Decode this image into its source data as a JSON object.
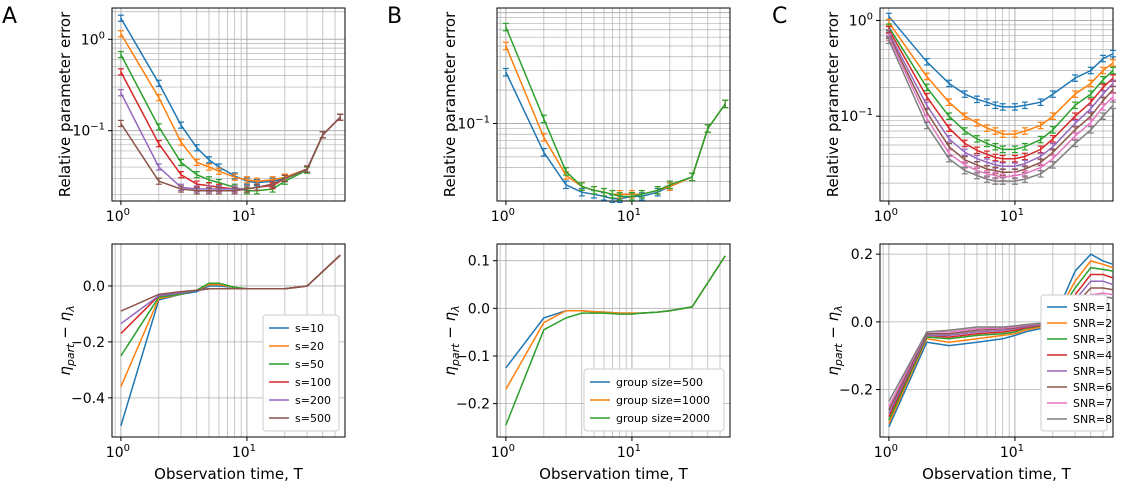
{
  "figure": {
    "panel_letters": [
      "A",
      "B",
      "C"
    ],
    "xlabel": "Observation time, T",
    "ylabel_top": "Relative parameter error",
    "ylabel_bottom": "η_part − η_λ"
  },
  "chart_data": [
    {
      "id": "A-top",
      "panel": "A",
      "type": "line",
      "xscale": "log",
      "yscale": "log",
      "xlim": [
        0.85,
        60
      ],
      "ylim": [
        0.017,
        2.2
      ],
      "grid": true,
      "xticks": [
        {
          "v": 1,
          "label": "10^0"
        },
        {
          "v": 10,
          "label": "10^1"
        }
      ],
      "yticks": [
        {
          "v": 0.1,
          "label": "10^-1"
        },
        {
          "v": 1,
          "label": "10^0"
        }
      ],
      "ylabel": "Relative parameter error",
      "error_bars": true,
      "x": [
        1,
        2,
        3,
        4,
        5,
        6,
        8,
        10,
        12,
        16,
        20,
        30,
        40,
        55
      ],
      "series": [
        {
          "name": "s=10",
          "color": "#1f77b4",
          "values": [
            1.7,
            0.33,
            0.115,
            0.065,
            0.048,
            0.04,
            0.032,
            0.028,
            0.027,
            0.028,
            0.03,
            0.038,
            0.09,
            0.14
          ]
        },
        {
          "name": "s=20",
          "color": "#ff7f0e",
          "values": [
            1.15,
            0.23,
            0.075,
            0.045,
            0.04,
            0.036,
            0.031,
            0.029,
            0.028,
            0.029,
            0.031,
            0.038,
            0.09,
            0.14
          ]
        },
        {
          "name": "s=50",
          "color": "#2ca02c",
          "values": [
            0.68,
            0.11,
            0.045,
            0.033,
            0.029,
            0.027,
            0.024,
            0.022,
            0.022,
            0.023,
            0.028,
            0.037,
            0.09,
            0.14
          ]
        },
        {
          "name": "s=100",
          "color": "#d62728",
          "values": [
            0.44,
            0.072,
            0.033,
            0.026,
            0.025,
            0.024,
            0.023,
            0.023,
            0.024,
            0.025,
            0.03,
            0.038,
            0.09,
            0.14
          ]
        },
        {
          "name": "s=200",
          "color": "#9467bd",
          "values": [
            0.26,
            0.04,
            0.024,
            0.023,
            0.023,
            0.023,
            0.023,
            0.023,
            0.024,
            0.026,
            0.03,
            0.038,
            0.09,
            0.14
          ]
        },
        {
          "name": "s=500",
          "color": "#8c564b",
          "values": [
            0.12,
            0.028,
            0.023,
            0.022,
            0.022,
            0.022,
            0.022,
            0.023,
            0.024,
            0.026,
            0.03,
            0.038,
            0.09,
            0.14
          ]
        }
      ]
    },
    {
      "id": "A-bottom",
      "panel": "A",
      "type": "line",
      "xscale": "log",
      "yscale": "linear",
      "xlim": [
        0.85,
        60
      ],
      "ylim": [
        -0.54,
        0.15
      ],
      "grid": true,
      "xticks": [
        {
          "v": 1,
          "label": "10^0"
        },
        {
          "v": 10,
          "label": "10^1"
        }
      ],
      "yticks": [
        {
          "v": -0.4,
          "label": "−0.4"
        },
        {
          "v": -0.2,
          "label": "−0.2"
        },
        {
          "v": 0,
          "label": "0.0"
        }
      ],
      "ylabel": "η_part − η_λ",
      "xlabel": "Observation time, T",
      "legend": "bottom-right",
      "x": [
        1,
        2,
        3,
        4,
        5,
        6,
        8,
        10,
        12,
        16,
        20,
        30,
        55
      ],
      "series": [
        {
          "name": "s=10",
          "color": "#1f77b4",
          "values": [
            -0.5,
            -0.05,
            -0.03,
            -0.02,
            0,
            0,
            -0.005,
            -0.01,
            -0.01,
            -0.01,
            -0.01,
            0,
            0.11
          ]
        },
        {
          "name": "s=20",
          "color": "#ff7f0e",
          "values": [
            -0.36,
            -0.045,
            -0.03,
            -0.015,
            0.005,
            0.005,
            -0.005,
            -0.01,
            -0.01,
            -0.01,
            -0.01,
            0,
            0.11
          ]
        },
        {
          "name": "s=50",
          "color": "#2ca02c",
          "values": [
            -0.25,
            -0.04,
            -0.03,
            -0.015,
            0.01,
            0.01,
            -0.005,
            -0.01,
            -0.01,
            -0.01,
            -0.01,
            0,
            0.11
          ]
        },
        {
          "name": "s=100",
          "color": "#d62728",
          "values": [
            -0.17,
            -0.035,
            -0.025,
            -0.015,
            -0.01,
            -0.01,
            -0.01,
            -0.01,
            -0.01,
            -0.01,
            -0.01,
            0,
            0.11
          ]
        },
        {
          "name": "s=200",
          "color": "#9467bd",
          "values": [
            -0.135,
            -0.035,
            -0.025,
            -0.015,
            -0.01,
            -0.01,
            -0.01,
            -0.01,
            -0.01,
            -0.01,
            -0.01,
            0,
            0.11
          ]
        },
        {
          "name": "s=500",
          "color": "#8c564b",
          "values": [
            -0.09,
            -0.03,
            -0.02,
            -0.015,
            -0.01,
            -0.01,
            -0.01,
            -0.01,
            -0.01,
            -0.01,
            -0.01,
            0,
            0.11
          ]
        }
      ]
    },
    {
      "id": "B-top",
      "panel": "B",
      "type": "line",
      "xscale": "log",
      "yscale": "log",
      "xlim": [
        0.85,
        60
      ],
      "ylim": [
        0.02,
        1.1
      ],
      "grid": true,
      "xticks": [
        {
          "v": 1,
          "label": "10^0"
        },
        {
          "v": 10,
          "label": "10^1"
        }
      ],
      "yticks": [
        {
          "v": 0.1,
          "label": "10^-1"
        }
      ],
      "ylabel": "Relative parameter error",
      "error_bars": true,
      "x": [
        1,
        2,
        3,
        4,
        5,
        6,
        7,
        8,
        10,
        12,
        16,
        20,
        30,
        40,
        55
      ],
      "series": [
        {
          "name": "group size=500",
          "color": "#1f77b4",
          "values": [
            0.29,
            0.055,
            0.028,
            0.024,
            0.023,
            0.022,
            0.021,
            0.021,
            0.022,
            0.022,
            0.024,
            0.027,
            0.033,
            0.09,
            0.15
          ]
        },
        {
          "name": "group size=1000",
          "color": "#ff7f0e",
          "values": [
            0.5,
            0.075,
            0.034,
            0.027,
            0.025,
            0.024,
            0.023,
            0.023,
            0.023,
            0.023,
            0.025,
            0.027,
            0.033,
            0.09,
            0.15
          ]
        },
        {
          "name": "group size=2000",
          "color": "#2ca02c",
          "values": [
            0.74,
            0.11,
            0.037,
            0.027,
            0.025,
            0.024,
            0.023,
            0.022,
            0.022,
            0.023,
            0.025,
            0.028,
            0.033,
            0.09,
            0.15
          ]
        }
      ]
    },
    {
      "id": "B-bottom",
      "panel": "B",
      "type": "line",
      "xscale": "log",
      "yscale": "linear",
      "xlim": [
        0.85,
        60
      ],
      "ylim": [
        -0.27,
        0.135
      ],
      "grid": true,
      "xticks": [
        {
          "v": 1,
          "label": "10^0"
        },
        {
          "v": 10,
          "label": "10^1"
        }
      ],
      "yticks": [
        {
          "v": -0.2,
          "label": "−0.2"
        },
        {
          "v": -0.1,
          "label": "−0.1"
        },
        {
          "v": 0,
          "label": "0.0"
        },
        {
          "v": 0.1,
          "label": "0.1"
        }
      ],
      "ylabel": "η_part − η_λ",
      "xlabel": "Observation time, T",
      "legend": "bottom-right",
      "x": [
        1,
        2,
        3,
        4,
        5,
        6,
        8,
        10,
        12,
        16,
        20,
        30,
        55
      ],
      "series": [
        {
          "name": "group size=500",
          "color": "#1f77b4",
          "values": [
            -0.125,
            -0.02,
            -0.005,
            -0.005,
            -0.007,
            -0.008,
            -0.01,
            -0.01,
            -0.01,
            -0.008,
            -0.005,
            0.003,
            0.11
          ]
        },
        {
          "name": "group size=1000",
          "color": "#ff7f0e",
          "values": [
            -0.17,
            -0.03,
            -0.005,
            -0.005,
            -0.007,
            -0.008,
            -0.01,
            -0.01,
            -0.01,
            -0.008,
            -0.005,
            0.003,
            0.11
          ]
        },
        {
          "name": "group size=2000",
          "color": "#2ca02c",
          "values": [
            -0.245,
            -0.045,
            -0.02,
            -0.01,
            -0.01,
            -0.01,
            -0.012,
            -0.012,
            -0.01,
            -0.008,
            -0.005,
            0.003,
            0.11
          ]
        }
      ]
    },
    {
      "id": "C-top",
      "panel": "C",
      "type": "line",
      "xscale": "log",
      "yscale": "log",
      "xlim": [
        0.85,
        60
      ],
      "ylim": [
        0.013,
        1.35
      ],
      "grid": true,
      "xticks": [
        {
          "v": 1,
          "label": "10^0"
        },
        {
          "v": 10,
          "label": "10^1"
        }
      ],
      "yticks": [
        {
          "v": 0.1,
          "label": "10^-1"
        },
        {
          "v": 1,
          "label": "10^0"
        }
      ],
      "ylabel": "Relative parameter error",
      "error_bars": true,
      "x": [
        1,
        2,
        3,
        4,
        5,
        6,
        7,
        8,
        10,
        12,
        16,
        20,
        30,
        40,
        50,
        60
      ],
      "series": [
        {
          "name": "SNR=1",
          "color": "#1f77b4",
          "values": [
            1.1,
            0.37,
            0.22,
            0.17,
            0.15,
            0.14,
            0.13,
            0.125,
            0.125,
            0.13,
            0.14,
            0.17,
            0.25,
            0.3,
            0.4,
            0.45
          ]
        },
        {
          "name": "SNR=2",
          "color": "#ff7f0e",
          "values": [
            0.95,
            0.26,
            0.14,
            0.1,
            0.085,
            0.075,
            0.07,
            0.065,
            0.065,
            0.07,
            0.08,
            0.1,
            0.17,
            0.22,
            0.3,
            0.36
          ]
        },
        {
          "name": "SNR=3",
          "color": "#2ca02c",
          "values": [
            0.85,
            0.2,
            0.1,
            0.07,
            0.058,
            0.052,
            0.048,
            0.045,
            0.045,
            0.048,
            0.057,
            0.072,
            0.13,
            0.17,
            0.24,
            0.3
          ]
        },
        {
          "name": "SNR=4",
          "color": "#d62728",
          "values": [
            0.8,
            0.16,
            0.075,
            0.052,
            0.044,
            0.04,
            0.037,
            0.036,
            0.036,
            0.038,
            0.045,
            0.058,
            0.1,
            0.14,
            0.2,
            0.25
          ]
        },
        {
          "name": "SNR=5",
          "color": "#9467bd",
          "values": [
            0.74,
            0.13,
            0.058,
            0.042,
            0.036,
            0.033,
            0.031,
            0.03,
            0.03,
            0.032,
            0.038,
            0.048,
            0.084,
            0.12,
            0.17,
            0.22
          ]
        },
        {
          "name": "SNR=6",
          "color": "#8c564b",
          "values": [
            0.7,
            0.11,
            0.048,
            0.035,
            0.031,
            0.028,
            0.027,
            0.026,
            0.026,
            0.028,
            0.033,
            0.042,
            0.072,
            0.1,
            0.145,
            0.19
          ]
        },
        {
          "name": "SNR=7",
          "color": "#e377c2",
          "values": [
            0.67,
            0.095,
            0.041,
            0.031,
            0.027,
            0.025,
            0.024,
            0.023,
            0.024,
            0.025,
            0.029,
            0.036,
            0.062,
            0.086,
            0.125,
            0.16
          ]
        },
        {
          "name": "SNR=8",
          "color": "#7f7f7f",
          "values": [
            0.62,
            0.08,
            0.036,
            0.027,
            0.024,
            0.022,
            0.021,
            0.021,
            0.021,
            0.022,
            0.025,
            0.031,
            0.052,
            0.072,
            0.1,
            0.13
          ]
        }
      ]
    },
    {
      "id": "C-bottom",
      "panel": "C",
      "type": "line",
      "xscale": "log",
      "yscale": "linear",
      "xlim": [
        0.85,
        60
      ],
      "ylim": [
        -0.34,
        0.23
      ],
      "grid": true,
      "xticks": [
        {
          "v": 1,
          "label": "10^0"
        },
        {
          "v": 10,
          "label": "10^1"
        }
      ],
      "yticks": [
        {
          "v": -0.2,
          "label": "−0.2"
        },
        {
          "v": 0,
          "label": "0.0"
        },
        {
          "v": 0.2,
          "label": "0.2"
        }
      ],
      "ylabel": "η_part − η_λ",
      "xlabel": "Observation time, T",
      "legend": "bottom-right",
      "x": [
        1,
        2,
        3,
        5,
        8,
        10,
        12,
        16,
        20,
        30,
        40,
        50,
        60
      ],
      "series": [
        {
          "name": "SNR=1",
          "color": "#1f77b4",
          "values": [
            -0.31,
            -0.06,
            -0.07,
            -0.06,
            -0.05,
            -0.04,
            -0.03,
            -0.02,
            0,
            0.15,
            0.2,
            0.18,
            0.17
          ]
        },
        {
          "name": "SNR=2",
          "color": "#ff7f0e",
          "values": [
            -0.3,
            -0.05,
            -0.06,
            -0.05,
            -0.04,
            -0.035,
            -0.025,
            -0.015,
            0,
            0.12,
            0.18,
            0.17,
            0.16
          ]
        },
        {
          "name": "SNR=3",
          "color": "#2ca02c",
          "values": [
            -0.29,
            -0.045,
            -0.05,
            -0.04,
            -0.035,
            -0.03,
            -0.02,
            -0.012,
            0,
            0.1,
            0.16,
            0.155,
            0.15
          ]
        },
        {
          "name": "SNR=4",
          "color": "#d62728",
          "values": [
            -0.28,
            -0.04,
            -0.045,
            -0.035,
            -0.03,
            -0.025,
            -0.018,
            -0.01,
            0,
            0.08,
            0.14,
            0.14,
            0.13
          ]
        },
        {
          "name": "SNR=5",
          "color": "#9467bd",
          "values": [
            -0.27,
            -0.04,
            -0.04,
            -0.03,
            -0.025,
            -0.02,
            -0.015,
            -0.008,
            0,
            0.065,
            0.12,
            0.12,
            0.11
          ]
        },
        {
          "name": "SNR=6",
          "color": "#8c564b",
          "values": [
            -0.26,
            -0.035,
            -0.035,
            -0.025,
            -0.02,
            -0.018,
            -0.012,
            -0.006,
            0,
            0.05,
            0.1,
            0.1,
            0.095
          ]
        },
        {
          "name": "SNR=7",
          "color": "#e377c2",
          "values": [
            -0.25,
            -0.03,
            -0.03,
            -0.02,
            -0.018,
            -0.015,
            -0.01,
            -0.005,
            0,
            0.04,
            0.08,
            0.085,
            0.08
          ]
        },
        {
          "name": "SNR=8",
          "color": "#7f7f7f",
          "values": [
            -0.235,
            -0.03,
            -0.025,
            -0.015,
            -0.015,
            -0.012,
            -0.008,
            -0.004,
            0,
            0.03,
            0.065,
            0.075,
            0.07
          ]
        }
      ]
    }
  ]
}
